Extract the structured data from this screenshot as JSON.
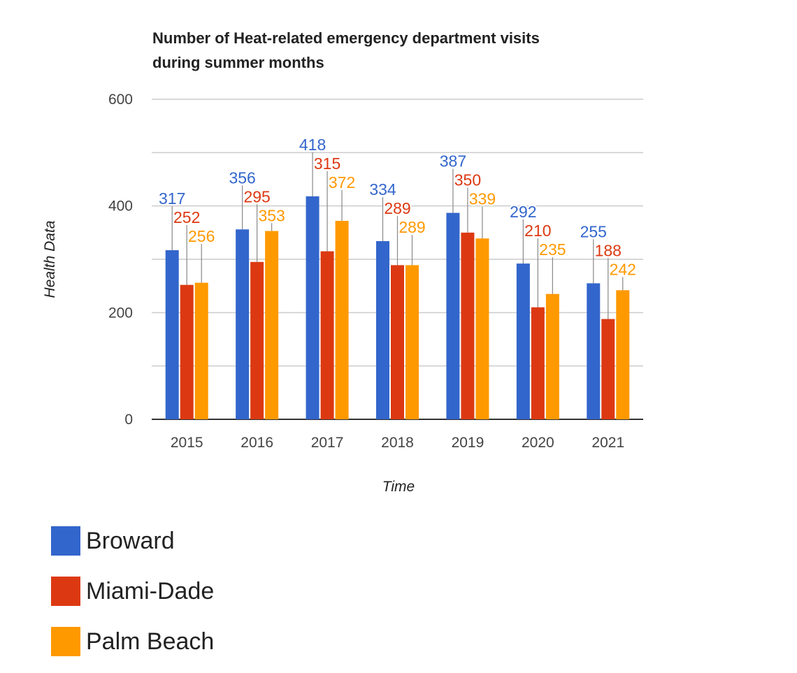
{
  "chart_data": {
    "type": "bar",
    "title_lines": [
      "Number of Heat-related emergency department visits",
      "during summer months"
    ],
    "xlabel": "Time",
    "ylabel": "Health Data",
    "ylim": [
      0,
      600
    ],
    "yticks": [
      0,
      200,
      400,
      600
    ],
    "grid": true,
    "legend_position": "bottom",
    "categories": [
      "2015",
      "2016",
      "2017",
      "2018",
      "2019",
      "2020",
      "2021"
    ],
    "series": [
      {
        "name": "Broward",
        "color": "#3366cc",
        "values": [
          317,
          356,
          418,
          334,
          387,
          292,
          255
        ]
      },
      {
        "name": "Miami-Dade",
        "color": "#dc3912",
        "values": [
          252,
          295,
          315,
          289,
          350,
          210,
          188
        ]
      },
      {
        "name": "Palm Beach",
        "color": "#ff9900",
        "values": [
          256,
          353,
          372,
          289,
          339,
          235,
          242
        ]
      }
    ]
  }
}
